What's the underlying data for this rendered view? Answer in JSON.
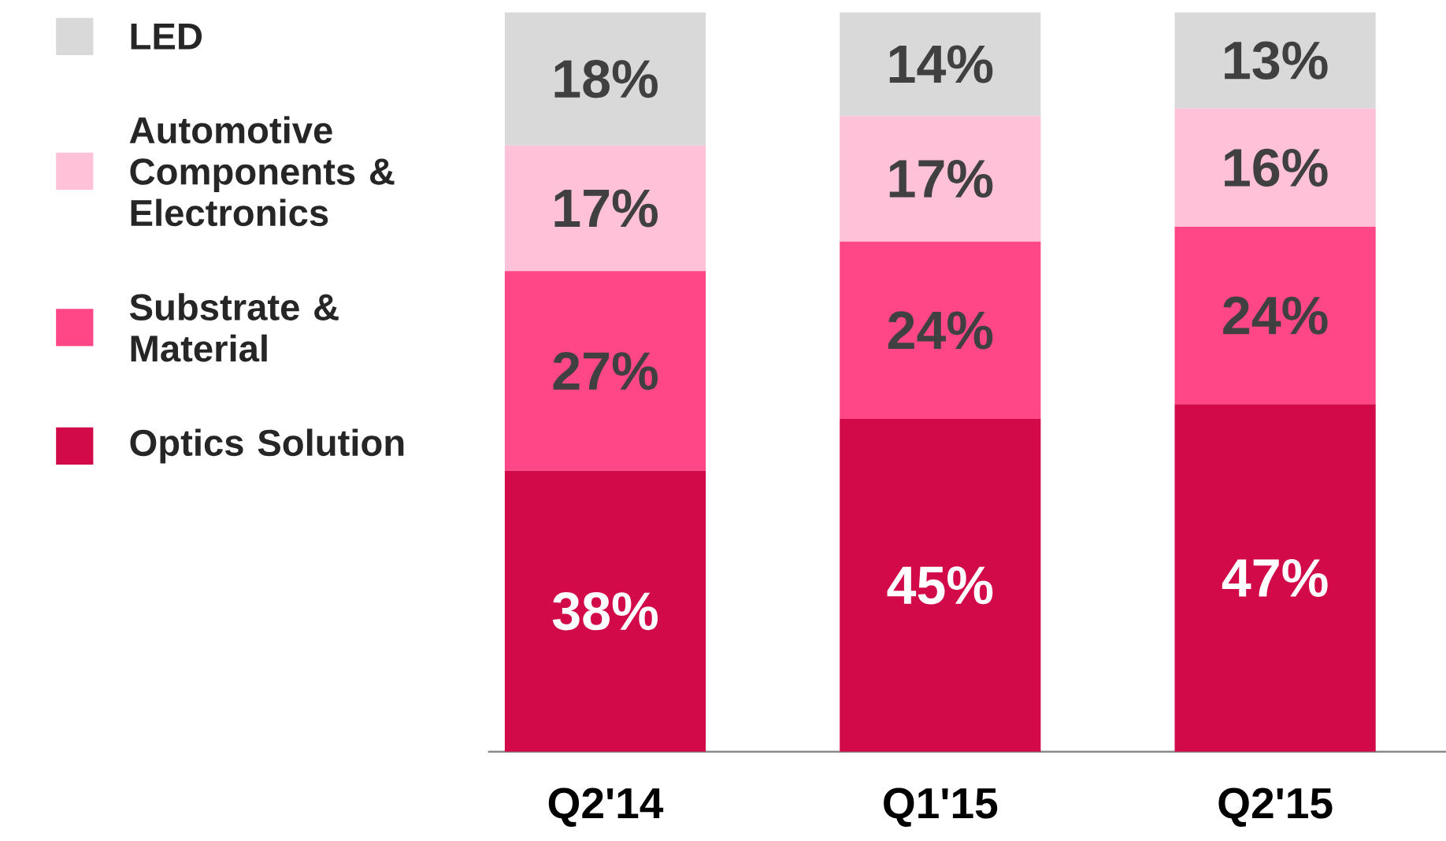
{
  "chart_data": {
    "type": "bar",
    "stacked": true,
    "categories": [
      "Q2'14",
      "Q1'15",
      "Q2'15"
    ],
    "series": [
      {
        "name": "Optics Solution",
        "color": "#d20a4a",
        "values": [
          38,
          45,
          47
        ],
        "value_labels": [
          "38%",
          "45%",
          "47%"
        ]
      },
      {
        "name": "Substrate & Material",
        "color": "#ff4788",
        "values": [
          27,
          24,
          24
        ],
        "value_labels": [
          "27%",
          "24%",
          "24%"
        ]
      },
      {
        "name": "Automotive Components & Electronics",
        "color": "#ffc1d8",
        "values": [
          17,
          17,
          16
        ],
        "value_labels": [
          "17%",
          "17%",
          "16%"
        ]
      },
      {
        "name": "LED",
        "color": "#d9d9d9",
        "values": [
          18,
          14,
          13
        ],
        "value_labels": [
          "18%",
          "14%",
          "13%"
        ]
      }
    ],
    "legend": "left",
    "tick_labels": "x"
  }
}
